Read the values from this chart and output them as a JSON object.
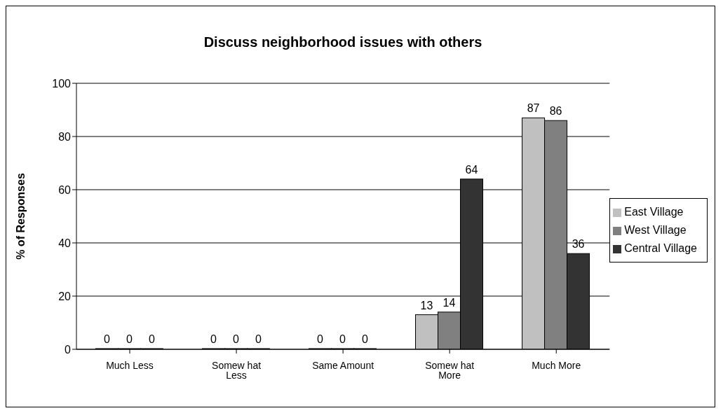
{
  "chart_data": {
    "type": "bar",
    "title": "Discuss neighborhood issues with others",
    "ylabel": "% of Responses",
    "categories": [
      "Much Less",
      "Somew hat Less",
      "Same Amount",
      "Somew hat More",
      "Much More"
    ],
    "series": [
      {
        "name": "East Village",
        "color": "#c0c0c0",
        "values": [
          0,
          0,
          0,
          13,
          87
        ]
      },
      {
        "name": "West Village",
        "color": "#808080",
        "values": [
          0,
          0,
          0,
          14,
          86
        ]
      },
      {
        "name": "Central Village",
        "color": "#333333",
        "values": [
          0,
          0,
          0,
          64,
          36
        ]
      }
    ],
    "ylim": [
      0,
      100
    ],
    "yticks": [
      0,
      20,
      40,
      60,
      80,
      100
    ],
    "grid": "y",
    "legend": "right",
    "data_labels": true
  }
}
